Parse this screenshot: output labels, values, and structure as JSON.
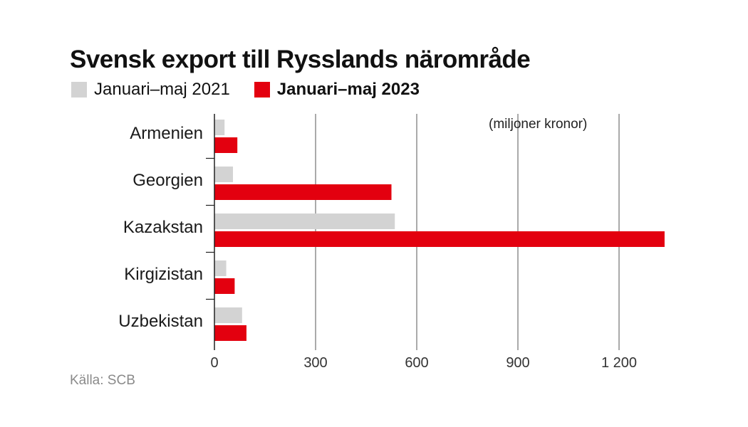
{
  "title": "Svensk export till Rysslands närområde",
  "legend": [
    {
      "label": "Januari–maj 2021",
      "color": "#d3d3d3"
    },
    {
      "label": "Januari–maj 2023",
      "color": "#e3000f"
    }
  ],
  "unit_label": "(miljoner kronor)",
  "source": "Källa: SCB",
  "chart_data": {
    "type": "bar",
    "orientation": "horizontal",
    "title": "Svensk export till Rysslands närområde",
    "xlabel": "(miljoner kronor)",
    "ylabel": "",
    "categories": [
      "Armenien",
      "Georgien",
      "Kazakstan",
      "Kirgizistan",
      "Uzbekistan"
    ],
    "series": [
      {
        "name": "Januari–maj 2021",
        "color": "#d3d3d3",
        "values": [
          30,
          55,
          535,
          35,
          82
        ]
      },
      {
        "name": "Januari–maj 2023",
        "color": "#e3000f",
        "values": [
          68,
          525,
          1335,
          60,
          95
        ]
      }
    ],
    "xlim": [
      0,
      1335
    ],
    "ticks": [
      0,
      300,
      600,
      900,
      1200
    ],
    "tick_labels": [
      "0",
      "300",
      "600",
      "900",
      "1 200"
    ],
    "grid": true
  }
}
